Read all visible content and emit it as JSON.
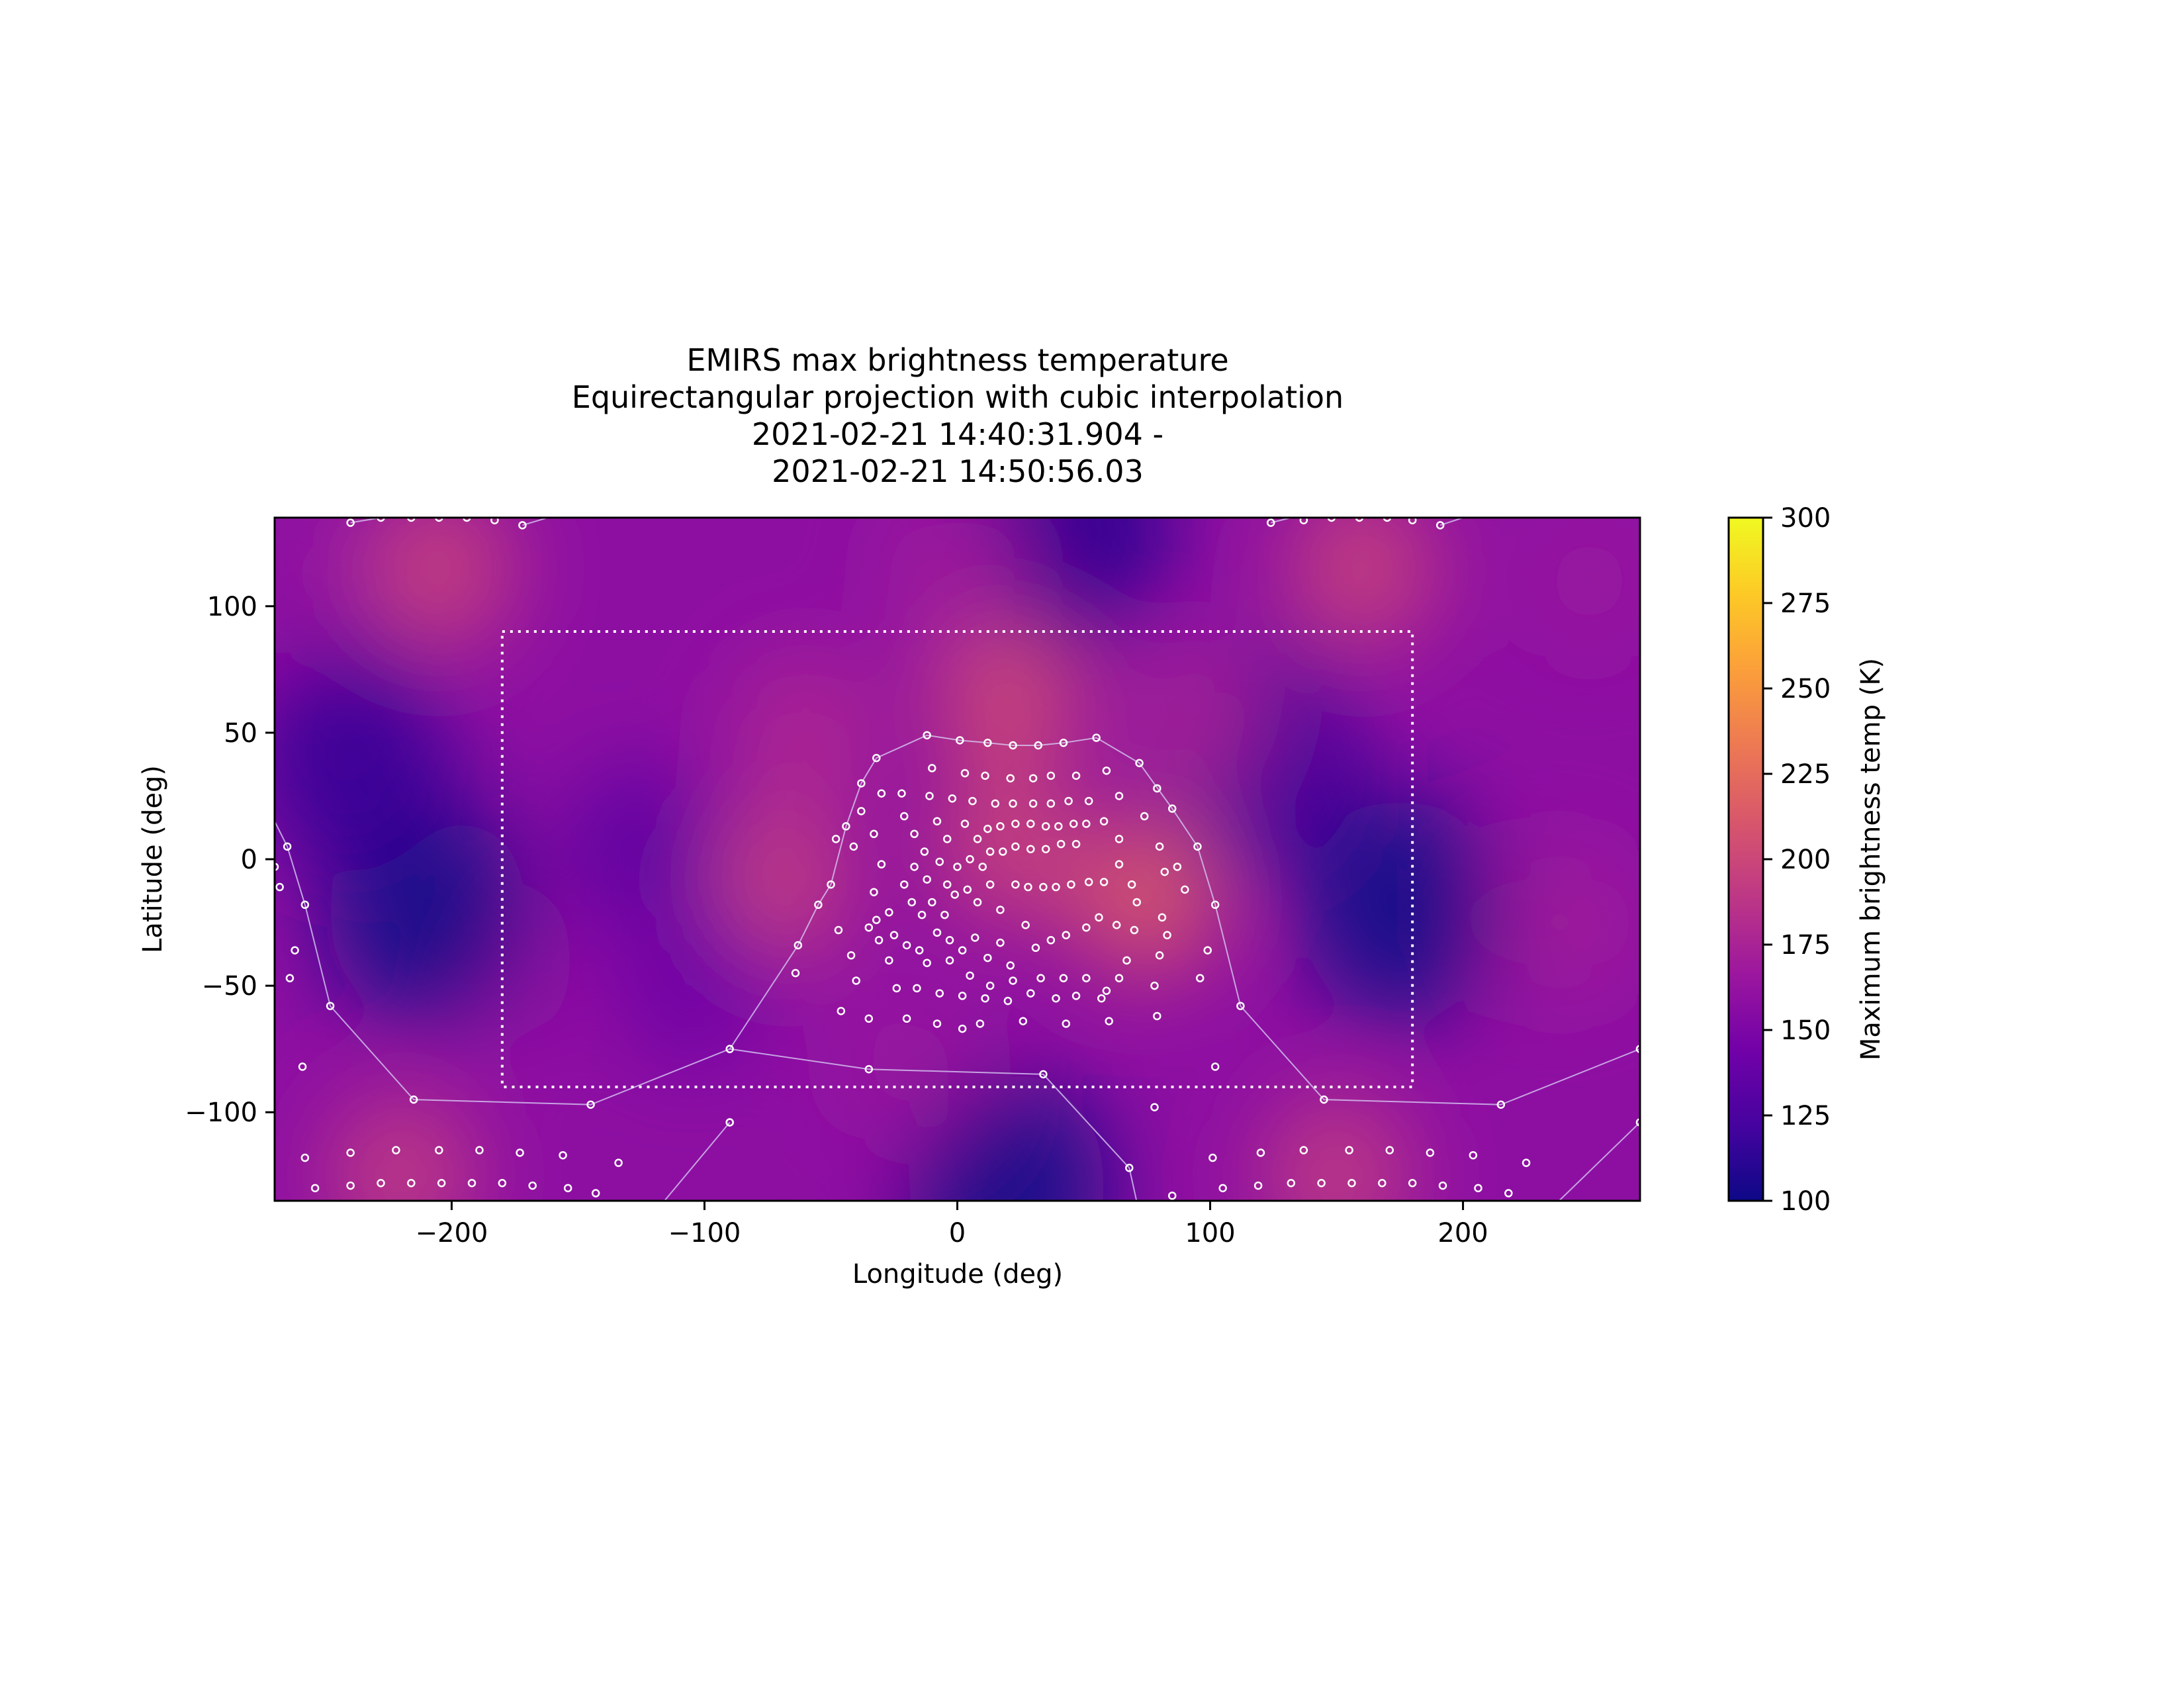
{
  "chart_data": {
    "type": "heatmap",
    "title": [
      "EMIRS max brightness temperature",
      "Equirectangular projection with cubic interpolation",
      "2021-02-21 14:40:31.904 -",
      "2021-02-21 14:50:56.03"
    ],
    "xlabel": "Longitude (deg)",
    "ylabel": "Latitude (deg)",
    "xlim": [
      -270,
      270
    ],
    "ylim": [
      -135,
      135
    ],
    "xticks": [
      -200,
      -100,
      0,
      100,
      200
    ],
    "xtick_labels": [
      "−200",
      "−100",
      "0",
      "100",
      "200"
    ],
    "yticks": [
      100,
      50,
      0,
      -50,
      -100
    ],
    "ytick_labels": [
      "100",
      "50",
      "0",
      "−50",
      "−100"
    ],
    "colorbar": {
      "label": "Maximum brightness temp (K)",
      "colormap": "plasma",
      "range": [
        100,
        300
      ],
      "ticks": [
        100,
        125,
        150,
        175,
        200,
        225,
        250,
        275,
        300
      ],
      "tick_labels": [
        "100",
        "125",
        "150",
        "175",
        "200",
        "225",
        "250",
        "275",
        "300"
      ]
    },
    "grid": false,
    "dotted_box": {
      "lon": [
        -180,
        180
      ],
      "lat": [
        -90,
        90
      ]
    },
    "colors": {
      "cmap_stops": [
        "#0d0887",
        "#46039f",
        "#7201a8",
        "#9c179e",
        "#bd3786",
        "#d8576b",
        "#ed7953",
        "#fb9f3a",
        "#fdca26",
        "#f0f921"
      ],
      "marker": "#ffffff",
      "track_line": "#d6c8f2"
    },
    "field_features": [
      {
        "lon": 20,
        "lat": 5,
        "value": 200
      },
      {
        "lon": 20,
        "lat": 65,
        "value": 205
      },
      {
        "lon": 75,
        "lat": -15,
        "value": 215
      },
      {
        "lon": -70,
        "lat": -10,
        "value": 195
      },
      {
        "lon": -205,
        "lat": 115,
        "value": 200
      },
      {
        "lon": 160,
        "lat": 115,
        "value": 200
      },
      {
        "lon": -220,
        "lat": -125,
        "value": 195
      },
      {
        "lon": 150,
        "lat": -125,
        "value": 195
      },
      {
        "lon": 240,
        "lat": -25,
        "value": 170
      },
      {
        "lon": -180,
        "lat": -40,
        "value": 160
      },
      {
        "lon": -210,
        "lat": -20,
        "value": 100
      },
      {
        "lon": 175,
        "lat": -20,
        "value": 100
      },
      {
        "lon": 20,
        "lat": -130,
        "value": 100
      },
      {
        "lon": 45,
        "lat": 130,
        "value": 108
      },
      {
        "lon": -240,
        "lat": 40,
        "value": 115
      },
      {
        "lon": 120,
        "lat": 40,
        "value": 115
      },
      {
        "lon": -125,
        "lat": 5,
        "value": 130
      },
      {
        "lon": -105,
        "lat": -50,
        "value": 140
      },
      {
        "lon": -60,
        "lat": 50,
        "value": 180
      },
      {
        "lon": 95,
        "lat": 55,
        "value": 175
      },
      {
        "lon": -20,
        "lat": -80,
        "value": 165
      },
      {
        "lon": 250,
        "lat": 110,
        "value": 165
      },
      {
        "lon": -265,
        "lat": 110,
        "value": 160
      },
      {
        "lon": 0,
        "lat": 115,
        "value": 170
      }
    ],
    "track_lines": [
      [
        [
          -12,
          49
        ],
        [
          1,
          47
        ],
        [
          12,
          46
        ],
        [
          22,
          45
        ],
        [
          32,
          45
        ],
        [
          42,
          46
        ],
        [
          55,
          48
        ],
        [
          72,
          38
        ],
        [
          85,
          20
        ],
        [
          95,
          5
        ],
        [
          102,
          -18
        ],
        [
          112,
          -58
        ],
        [
          145,
          -95
        ],
        [
          215,
          -97
        ],
        [
          270,
          -75
        ]
      ],
      [
        [
          -12,
          49
        ],
        [
          -32,
          40
        ],
        [
          -38,
          30
        ],
        [
          -44,
          13
        ],
        [
          -50,
          -10
        ],
        [
          -55,
          -18
        ],
        [
          -63,
          -34
        ],
        [
          -90,
          -75
        ],
        [
          -145,
          -97
        ],
        [
          -215,
          -95
        ],
        [
          -248,
          -58
        ],
        [
          -258,
          -18
        ],
        [
          -265,
          5
        ],
        [
          -270,
          15
        ]
      ],
      [
        [
          -90,
          -104
        ],
        [
          -120,
          -140
        ]
      ],
      [
        [
          -35,
          -83
        ],
        [
          34,
          -85
        ],
        [
          68,
          -122
        ],
        [
          72,
          -140
        ]
      ],
      [
        [
          -35,
          -83
        ],
        [
          -90,
          -75
        ]
      ],
      [
        [
          238,
          -135
        ],
        [
          270,
          -104
        ]
      ],
      [
        [
          -240,
          133
        ],
        [
          -228,
          135
        ]
      ],
      [
        [
          -172,
          132
        ],
        [
          -162,
          135
        ]
      ],
      [
        [
          124,
          133
        ],
        [
          132,
          135
        ]
      ],
      [
        [
          191,
          132
        ],
        [
          200,
          135
        ]
      ]
    ],
    "observations": [
      [
        -12,
        49
      ],
      [
        1,
        47
      ],
      [
        12,
        46
      ],
      [
        22,
        45
      ],
      [
        32,
        45
      ],
      [
        42,
        46
      ],
      [
        55,
        48
      ],
      [
        72,
        38
      ],
      [
        85,
        20
      ],
      [
        95,
        5
      ],
      [
        102,
        -18
      ],
      [
        112,
        -58
      ],
      [
        145,
        -95
      ],
      [
        215,
        -97
      ],
      [
        270,
        -75
      ],
      [
        -32,
        40
      ],
      [
        -38,
        30
      ],
      [
        -44,
        13
      ],
      [
        -50,
        -10
      ],
      [
        -55,
        -18
      ],
      [
        -63,
        -34
      ],
      [
        -90,
        -75
      ],
      [
        -145,
        -97
      ],
      [
        -215,
        -95
      ],
      [
        -248,
        -58
      ],
      [
        -258,
        -18
      ],
      [
        -265,
        5
      ],
      [
        -270,
        -3
      ],
      [
        -268,
        -11
      ],
      [
        -262,
        -36
      ],
      [
        -264,
        -47
      ],
      [
        -259,
        -82
      ],
      [
        -90,
        -104
      ],
      [
        -35,
        -83
      ],
      [
        34,
        -85
      ],
      [
        68,
        -122
      ],
      [
        85,
        -133
      ],
      [
        78,
        -98
      ],
      [
        102,
        -82
      ],
      [
        79,
        28
      ],
      [
        87,
        -3
      ],
      [
        90,
        -12
      ],
      [
        99,
        -36
      ],
      [
        96,
        -47
      ],
      [
        83,
        -30
      ],
      [
        80,
        -38
      ],
      [
        78,
        -50
      ],
      [
        79,
        -62
      ],
      [
        -64,
        -45
      ],
      [
        -46,
        -60
      ],
      [
        -35,
        -27
      ],
      [
        -30,
        26
      ],
      [
        -38,
        19
      ],
      [
        -41,
        5
      ],
      [
        -48,
        8
      ],
      [
        -47,
        -28
      ],
      [
        -42,
        -38
      ],
      [
        -40,
        -48
      ],
      [
        -35,
        -63
      ],
      [
        -20,
        -63
      ],
      [
        -8,
        -65
      ],
      [
        2,
        -67
      ],
      [
        9,
        -65
      ],
      [
        26,
        -64
      ],
      [
        43,
        -65
      ],
      [
        60,
        -64
      ],
      [
        -10,
        36
      ],
      [
        3,
        34
      ],
      [
        11,
        33
      ],
      [
        21,
        32
      ],
      [
        30,
        32
      ],
      [
        37,
        33
      ],
      [
        47,
        33
      ],
      [
        59,
        35
      ],
      [
        64,
        25
      ],
      [
        74,
        17
      ],
      [
        80,
        5
      ],
      [
        82,
        -5
      ],
      [
        81,
        -23
      ],
      [
        -22,
        26
      ],
      [
        -11,
        25
      ],
      [
        -2,
        24
      ],
      [
        6,
        23
      ],
      [
        15,
        22
      ],
      [
        22,
        22
      ],
      [
        30,
        22
      ],
      [
        37,
        22
      ],
      [
        44,
        23
      ],
      [
        52,
        23
      ],
      [
        58,
        15
      ],
      [
        64,
        8
      ],
      [
        64,
        -2
      ],
      [
        69,
        -10
      ],
      [
        71,
        -17
      ],
      [
        70,
        -28
      ],
      [
        67,
        -40
      ],
      [
        -33,
        10
      ],
      [
        -30,
        -2
      ],
      [
        -33,
        -13
      ],
      [
        -32,
        -24
      ],
      [
        -31,
        -32
      ],
      [
        -27,
        -40
      ],
      [
        -24,
        -51
      ],
      [
        -21,
        17
      ],
      [
        -17,
        10
      ],
      [
        -13,
        3
      ],
      [
        -8,
        15
      ],
      [
        -4,
        8
      ],
      [
        3,
        14
      ],
      [
        8,
        8
      ],
      [
        12,
        12
      ],
      [
        17,
        13
      ],
      [
        23,
        14
      ],
      [
        29,
        14
      ],
      [
        35,
        13
      ],
      [
        40,
        13
      ],
      [
        46,
        14
      ],
      [
        51,
        14
      ],
      [
        -17,
        -3
      ],
      [
        -12,
        -8
      ],
      [
        -7,
        -1
      ],
      [
        -4,
        -10
      ],
      [
        0,
        -3
      ],
      [
        5,
        0
      ],
      [
        10,
        -3
      ],
      [
        13,
        3
      ],
      [
        18,
        3
      ],
      [
        23,
        5
      ],
      [
        29,
        4
      ],
      [
        35,
        4
      ],
      [
        41,
        6
      ],
      [
        47,
        6
      ],
      [
        -21,
        -10
      ],
      [
        -18,
        -17
      ],
      [
        -14,
        -22
      ],
      [
        -10,
        -17
      ],
      [
        -5,
        -22
      ],
      [
        -1,
        -14
      ],
      [
        4,
        -12
      ],
      [
        8,
        -17
      ],
      [
        13,
        -10
      ],
      [
        17,
        -20
      ],
      [
        23,
        -10
      ],
      [
        28,
        -11
      ],
      [
        34,
        -11
      ],
      [
        39,
        -11
      ],
      [
        45,
        -10
      ],
      [
        52,
        -9
      ],
      [
        58,
        -9
      ],
      [
        -27,
        -21
      ],
      [
        -25,
        -30
      ],
      [
        -20,
        -34
      ],
      [
        -15,
        -36
      ],
      [
        -12,
        -41
      ],
      [
        -8,
        -29
      ],
      [
        -3,
        -32
      ],
      [
        2,
        -36
      ],
      [
        7,
        -31
      ],
      [
        12,
        -39
      ],
      [
        17,
        -33
      ],
      [
        21,
        -42
      ],
      [
        27,
        -26
      ],
      [
        31,
        -35
      ],
      [
        37,
        -32
      ],
      [
        43,
        -30
      ],
      [
        51,
        -27
      ],
      [
        56,
        -23
      ],
      [
        63,
        -26
      ],
      [
        -3,
        -40
      ],
      [
        5,
        -46
      ],
      [
        13,
        -50
      ],
      [
        22,
        -48
      ],
      [
        33,
        -47
      ],
      [
        42,
        -47
      ],
      [
        51,
        -47
      ],
      [
        59,
        -52
      ],
      [
        64,
        -47
      ],
      [
        -16,
        -51
      ],
      [
        -7,
        -53
      ],
      [
        2,
        -54
      ],
      [
        11,
        -55
      ],
      [
        20,
        -56
      ],
      [
        29,
        -53
      ],
      [
        39,
        -55
      ],
      [
        47,
        -54
      ],
      [
        57,
        -55
      ],
      [
        -240,
        133
      ],
      [
        -228,
        135
      ],
      [
        -216,
        135
      ],
      [
        -205,
        135
      ],
      [
        -194,
        135
      ],
      [
        -183,
        134
      ],
      [
        -172,
        132
      ],
      [
        124,
        133
      ],
      [
        137,
        134
      ],
      [
        148,
        135
      ],
      [
        159,
        135
      ],
      [
        170,
        135
      ],
      [
        180,
        134
      ],
      [
        191,
        132
      ],
      [
        -258,
        -118
      ],
      [
        -240,
        -116
      ],
      [
        -222,
        -115
      ],
      [
        -205,
        -115
      ],
      [
        -189,
        -115
      ],
      [
        -173,
        -116
      ],
      [
        -156,
        -117
      ],
      [
        -134,
        -120
      ],
      [
        -254,
        -130
      ],
      [
        -240,
        -129
      ],
      [
        -228,
        -128
      ],
      [
        -216,
        -128
      ],
      [
        -204,
        -128
      ],
      [
        -192,
        -128
      ],
      [
        -180,
        -128
      ],
      [
        -168,
        -129
      ],
      [
        -154,
        -130
      ],
      [
        -143,
        -132
      ],
      [
        101,
        -118
      ],
      [
        120,
        -116
      ],
      [
        137,
        -115
      ],
      [
        155,
        -115
      ],
      [
        171,
        -115
      ],
      [
        187,
        -116
      ],
      [
        204,
        -117
      ],
      [
        225,
        -120
      ],
      [
        105,
        -130
      ],
      [
        119,
        -129
      ],
      [
        132,
        -128
      ],
      [
        144,
        -128
      ],
      [
        156,
        -128
      ],
      [
        168,
        -128
      ],
      [
        180,
        -128
      ],
      [
        192,
        -129
      ],
      [
        206,
        -130
      ],
      [
        218,
        -132
      ],
      [
        -90,
        -104
      ],
      [
        270,
        -104
      ]
    ]
  }
}
